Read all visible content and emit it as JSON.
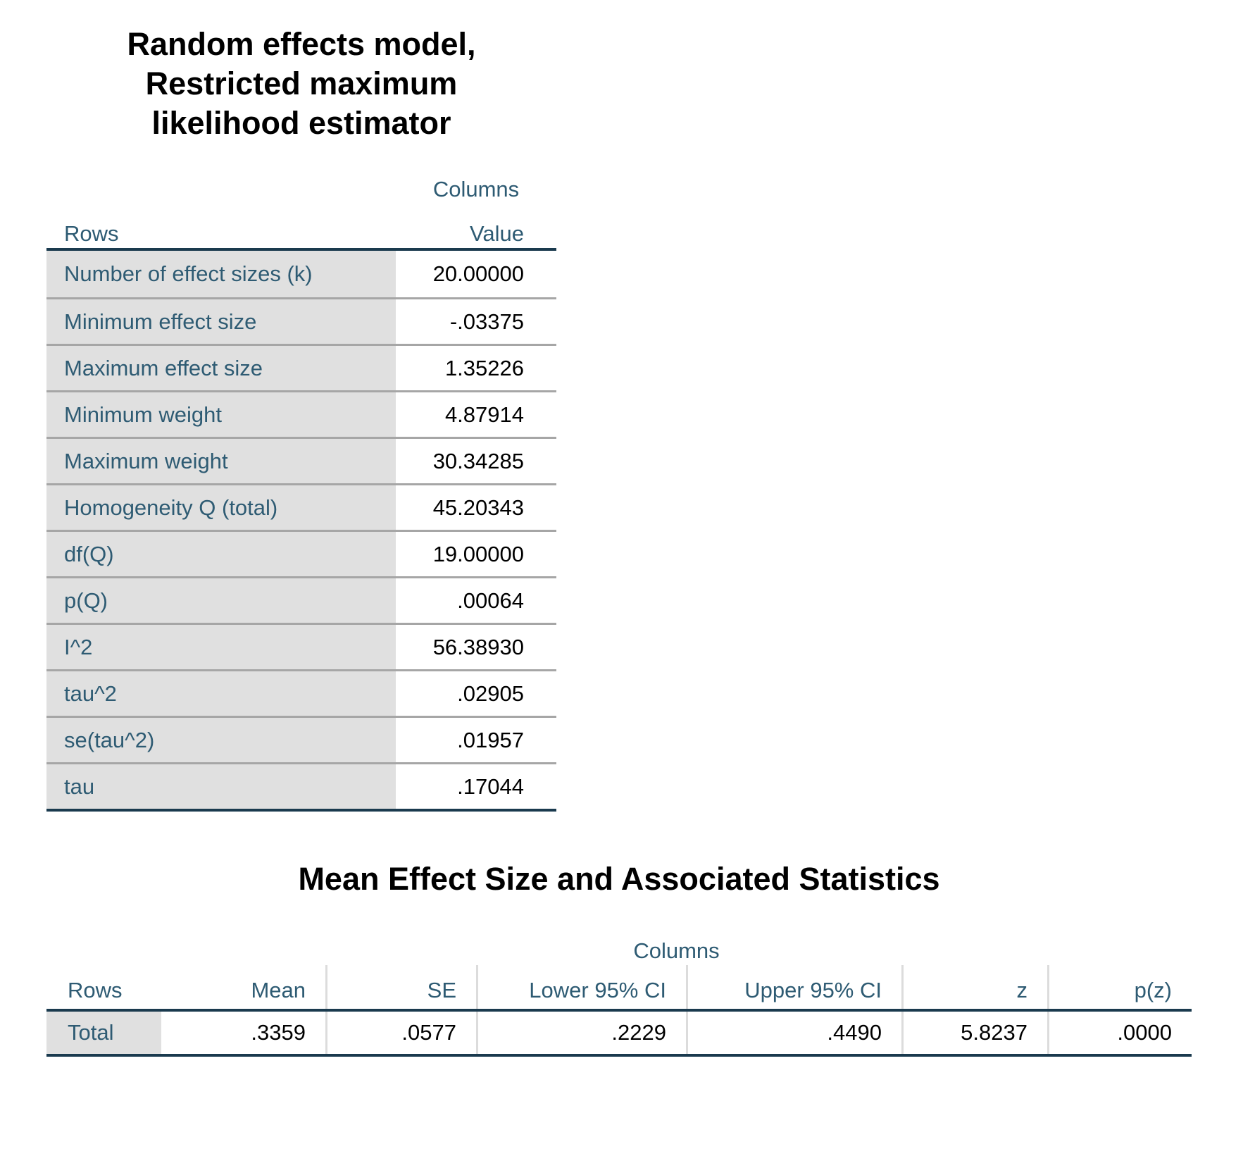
{
  "summary_table": {
    "title_lines": [
      "Random effects model,",
      "Restricted maximum",
      "likelihood estimator"
    ],
    "columns_header": "Columns",
    "rows_header": "Rows",
    "value_column_header": "Value",
    "rows": [
      {
        "label": "Number of effect sizes (k)",
        "value": "20.00000"
      },
      {
        "label": "Minimum effect size",
        "value": "-.03375"
      },
      {
        "label": "Maximum effect size",
        "value": "1.35226"
      },
      {
        "label": "Minimum weight",
        "value": "4.87914"
      },
      {
        "label": "Maximum weight",
        "value": "30.34285"
      },
      {
        "label": "Homogeneity Q (total)",
        "value": "45.20343"
      },
      {
        "label": "df(Q)",
        "value": "19.00000"
      },
      {
        "label": "p(Q)",
        "value": ".00064"
      },
      {
        "label": "I^2",
        "value": "56.38930"
      },
      {
        "label": "tau^2",
        "value": ".02905"
      },
      {
        "label": "se(tau^2)",
        "value": ".01957"
      },
      {
        "label": "tau",
        "value": ".17044"
      }
    ]
  },
  "mean_effect_table": {
    "title": "Mean Effect Size and Associated Statistics",
    "columns_header": "Columns",
    "rows_header": "Rows",
    "column_headers": [
      "Mean",
      "SE",
      "Lower 95% CI",
      "Upper 95% CI",
      "z",
      "p(z)"
    ],
    "total_row": {
      "label": "Total",
      "values": [
        ".3359",
        ".0577",
        ".2229",
        ".4490",
        "5.8237",
        ".0000"
      ]
    }
  },
  "colors": {
    "header_text": "#2E5B73",
    "row_label_text": "#2E5B73",
    "value_text": "#000000",
    "title_text": "#000000",
    "dark_border": "#1A3A4E",
    "row_label_background": "#E0E0E0",
    "row_separator": "#A6A6A6",
    "column_separator": "#DCDCDC",
    "page_background": "#FFFFFF"
  }
}
